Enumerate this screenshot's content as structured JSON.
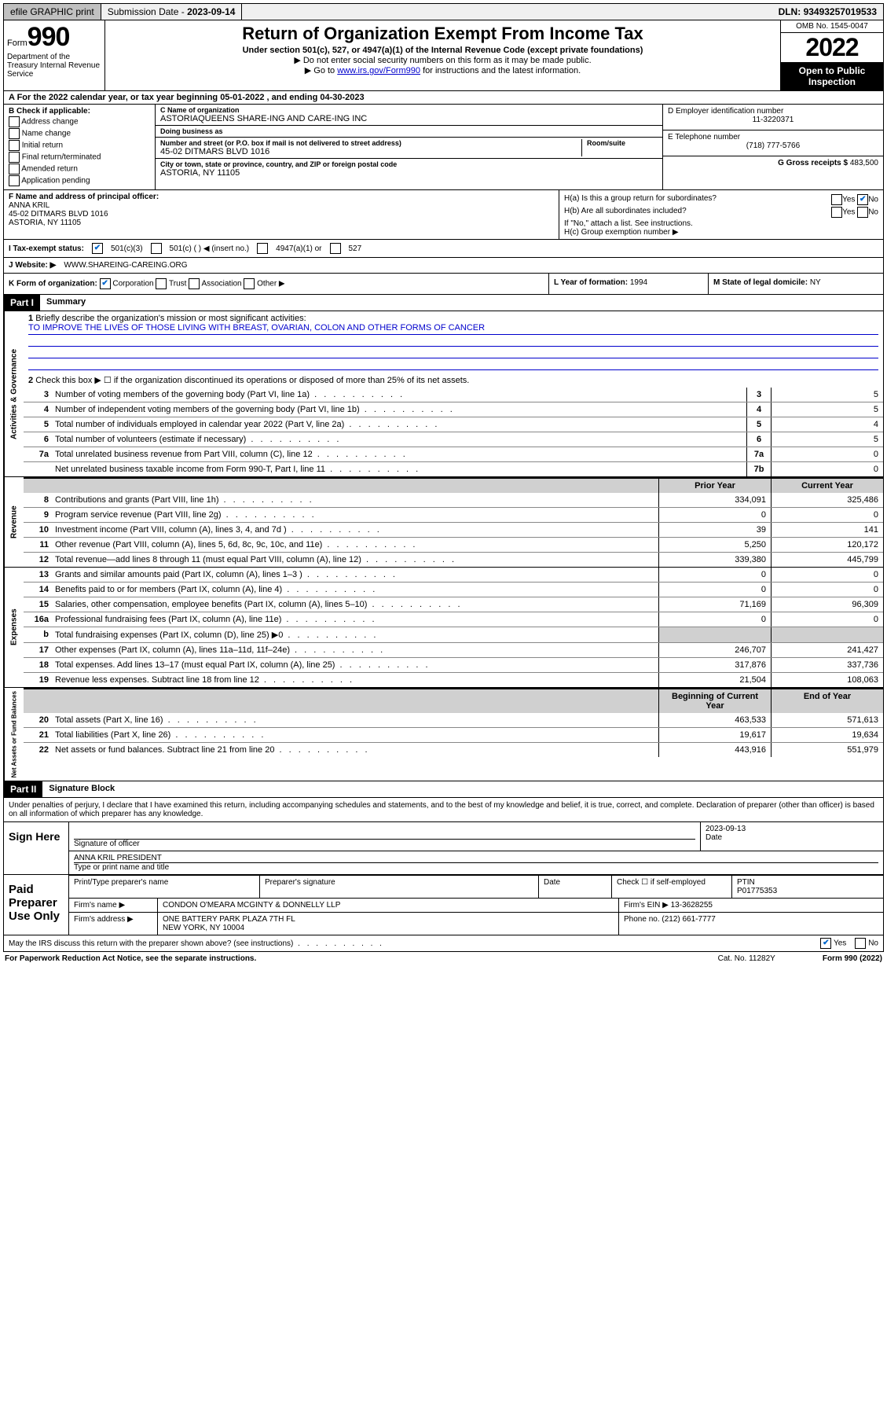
{
  "topbar": {
    "efile": "efile GRAPHIC print",
    "submission_label": "Submission Date - ",
    "submission_date": "2023-09-14",
    "dln_label": "DLN: ",
    "dln": "93493257019533"
  },
  "header": {
    "form_word": "Form",
    "form_number": "990",
    "dept": "Department of the Treasury Internal Revenue Service",
    "title": "Return of Organization Exempt From Income Tax",
    "sub1": "Under section 501(c), 527, or 4947(a)(1) of the Internal Revenue Code (except private foundations)",
    "sub2": "▶ Do not enter social security numbers on this form as it may be made public.",
    "sub3_pre": "▶ Go to ",
    "sub3_link": "www.irs.gov/Form990",
    "sub3_post": " for instructions and the latest information.",
    "omb": "OMB No. 1545-0047",
    "year": "2022",
    "open_public": "Open to Public Inspection"
  },
  "rowA": "A For the 2022 calendar year, or tax year beginning 05-01-2022   , and ending 04-30-2023",
  "colB": {
    "label": "B Check if applicable:",
    "opts": [
      "Address change",
      "Name change",
      "Initial return",
      "Final return/terminated",
      "Amended return",
      "Application pending"
    ]
  },
  "colC": {
    "name_label": "C Name of organization",
    "name": "ASTORIAQUEENS SHARE-ING AND CARE-ING INC",
    "dba_label": "Doing business as",
    "dba": "",
    "street_label": "Number and street (or P.O. box if mail is not delivered to street address)",
    "room_label": "Room/suite",
    "street": "45-02 DITMARS BLVD 1016",
    "city_label": "City or town, state or province, country, and ZIP or foreign postal code",
    "city": "ASTORIA, NY  11105"
  },
  "colDE": {
    "d_label": "D Employer identification number",
    "ein": "11-3220371",
    "e_label": "E Telephone number",
    "phone": "(718) 777-5766",
    "g_label": "G Gross receipts $ ",
    "gross": "483,500"
  },
  "rowF": {
    "label": "F  Name and address of principal officer:",
    "name": "ANNA KRIL",
    "addr1": "45-02 DITMARS BLVD 1016",
    "addr2": "ASTORIA, NY  11105"
  },
  "rowH": {
    "ha": "H(a)  Is this a group return for subordinates?",
    "ha_yes": "Yes",
    "ha_no": "No",
    "ha_checked": "no",
    "hb": "H(b)  Are all subordinates included?",
    "hb_yes": "Yes",
    "hb_no": "No",
    "hb_note": "If \"No,\" attach a list. See instructions.",
    "hc": "H(c)  Group exemption number ▶"
  },
  "rowI": {
    "label": "I    Tax-exempt status:",
    "opt1": "501(c)(3)",
    "opt1_checked": true,
    "opt2": "501(c) ( ) ◀ (insert no.)",
    "opt3": "4947(a)(1) or",
    "opt4": "527"
  },
  "rowJ": {
    "label": "J   Website: ▶ ",
    "site": "WWW.SHAREING-CAREING.ORG"
  },
  "rowK": {
    "k_label": "K Form of organization:",
    "opts": [
      "Corporation",
      "Trust",
      "Association",
      "Other ▶"
    ],
    "corp_checked": true,
    "l_label": "L Year of formation: ",
    "l_val": "1994",
    "m_label": "M State of legal domicile: ",
    "m_val": "NY"
  },
  "part1": {
    "header": "Part I",
    "title": "Summary",
    "q1": "Briefly describe the organization's mission or most significant activities:",
    "mission": "TO IMPROVE THE LIVES OF THOSE LIVING WITH BREAST, OVARIAN, COLON AND OTHER FORMS OF CANCER",
    "q2": "Check this box ▶ ☐  if the organization discontinued its operations or disposed of more than 25% of its net assets.",
    "lines_gov": [
      {
        "n": "3",
        "d": "Number of voting members of the governing body (Part VI, line 1a)",
        "box": "3",
        "v": "5"
      },
      {
        "n": "4",
        "d": "Number of independent voting members of the governing body (Part VI, line 1b)",
        "box": "4",
        "v": "5"
      },
      {
        "n": "5",
        "d": "Total number of individuals employed in calendar year 2022 (Part V, line 2a)",
        "box": "5",
        "v": "4"
      },
      {
        "n": "6",
        "d": "Total number of volunteers (estimate if necessary)",
        "box": "6",
        "v": "5"
      },
      {
        "n": "7a",
        "d": "Total unrelated business revenue from Part VIII, column (C), line 12",
        "box": "7a",
        "v": "0"
      },
      {
        "n": "",
        "d": "Net unrelated business taxable income from Form 990-T, Part I, line 11",
        "box": "7b",
        "v": "0"
      }
    ],
    "col_prior": "Prior Year",
    "col_current": "Current Year",
    "lines_rev": [
      {
        "n": "8",
        "d": "Contributions and grants (Part VIII, line 1h)",
        "p": "334,091",
        "c": "325,486"
      },
      {
        "n": "9",
        "d": "Program service revenue (Part VIII, line 2g)",
        "p": "0",
        "c": "0"
      },
      {
        "n": "10",
        "d": "Investment income (Part VIII, column (A), lines 3, 4, and 7d )",
        "p": "39",
        "c": "141"
      },
      {
        "n": "11",
        "d": "Other revenue (Part VIII, column (A), lines 5, 6d, 8c, 9c, 10c, and 11e)",
        "p": "5,250",
        "c": "120,172"
      },
      {
        "n": "12",
        "d": "Total revenue—add lines 8 through 11 (must equal Part VIII, column (A), line 12)",
        "p": "339,380",
        "c": "445,799"
      }
    ],
    "lines_exp": [
      {
        "n": "13",
        "d": "Grants and similar amounts paid (Part IX, column (A), lines 1–3 )",
        "p": "0",
        "c": "0"
      },
      {
        "n": "14",
        "d": "Benefits paid to or for members (Part IX, column (A), line 4)",
        "p": "0",
        "c": "0"
      },
      {
        "n": "15",
        "d": "Salaries, other compensation, employee benefits (Part IX, column (A), lines 5–10)",
        "p": "71,169",
        "c": "96,309"
      },
      {
        "n": "16a",
        "d": "Professional fundraising fees (Part IX, column (A), line 11e)",
        "p": "0",
        "c": "0"
      },
      {
        "n": "b",
        "d": "Total fundraising expenses (Part IX, column (D), line 25) ▶0",
        "p": "",
        "c": "",
        "shade": true
      },
      {
        "n": "17",
        "d": "Other expenses (Part IX, column (A), lines 11a–11d, 11f–24e)",
        "p": "246,707",
        "c": "241,427"
      },
      {
        "n": "18",
        "d": "Total expenses. Add lines 13–17 (must equal Part IX, column (A), line 25)",
        "p": "317,876",
        "c": "337,736"
      },
      {
        "n": "19",
        "d": "Revenue less expenses. Subtract line 18 from line 12",
        "p": "21,504",
        "c": "108,063"
      }
    ],
    "col_begin": "Beginning of Current Year",
    "col_end": "End of Year",
    "lines_net": [
      {
        "n": "20",
        "d": "Total assets (Part X, line 16)",
        "p": "463,533",
        "c": "571,613"
      },
      {
        "n": "21",
        "d": "Total liabilities (Part X, line 26)",
        "p": "19,617",
        "c": "19,634"
      },
      {
        "n": "22",
        "d": "Net assets or fund balances. Subtract line 21 from line 20",
        "p": "443,916",
        "c": "551,979"
      }
    ],
    "vlabels": {
      "gov": "Activities & Governance",
      "rev": "Revenue",
      "exp": "Expenses",
      "net": "Net Assets or Fund Balances"
    }
  },
  "part2": {
    "header": "Part II",
    "title": "Signature Block",
    "intro": "Under penalties of perjury, I declare that I have examined this return, including accompanying schedules and statements, and to the best of my knowledge and belief, it is true, correct, and complete. Declaration of preparer (other than officer) is based on all information of which preparer has any knowledge.",
    "sign_here": "Sign Here",
    "sig_of_officer": "Signature of officer",
    "sig_date": "2023-09-13",
    "date_label": "Date",
    "officer_name": "ANNA KRIL PRESIDENT",
    "type_name": "Type or print name and title",
    "paid_prep": "Paid Preparer Use Only",
    "pt_name_label": "Print/Type preparer's name",
    "pt_sig_label": "Preparer's signature",
    "pt_date_label": "Date",
    "pt_check_label": "Check ☐ if self-employed",
    "ptin_label": "PTIN",
    "ptin": "P01775353",
    "firm_name_label": "Firm's name  ▶",
    "firm_name": "CONDON O'MEARA MCGINTY & DONNELLY LLP",
    "firm_ein_label": "Firm's EIN ▶ ",
    "firm_ein": "13-3628255",
    "firm_addr_label": "Firm's address ▶",
    "firm_addr1": "ONE BATTERY PARK PLAZA 7TH FL",
    "firm_addr2": "NEW YORK, NY  10004",
    "phone_label": "Phone no. ",
    "phone": "(212) 661-7777",
    "may_irs": "May the IRS discuss this return with the preparer shown above? (see instructions)",
    "yes": "Yes",
    "no": "No",
    "yes_checked": true
  },
  "footer": {
    "paperwork": "For Paperwork Reduction Act Notice, see the separate instructions.",
    "cat": "Cat. No. 11282Y",
    "form": "Form 990 (2022)"
  }
}
